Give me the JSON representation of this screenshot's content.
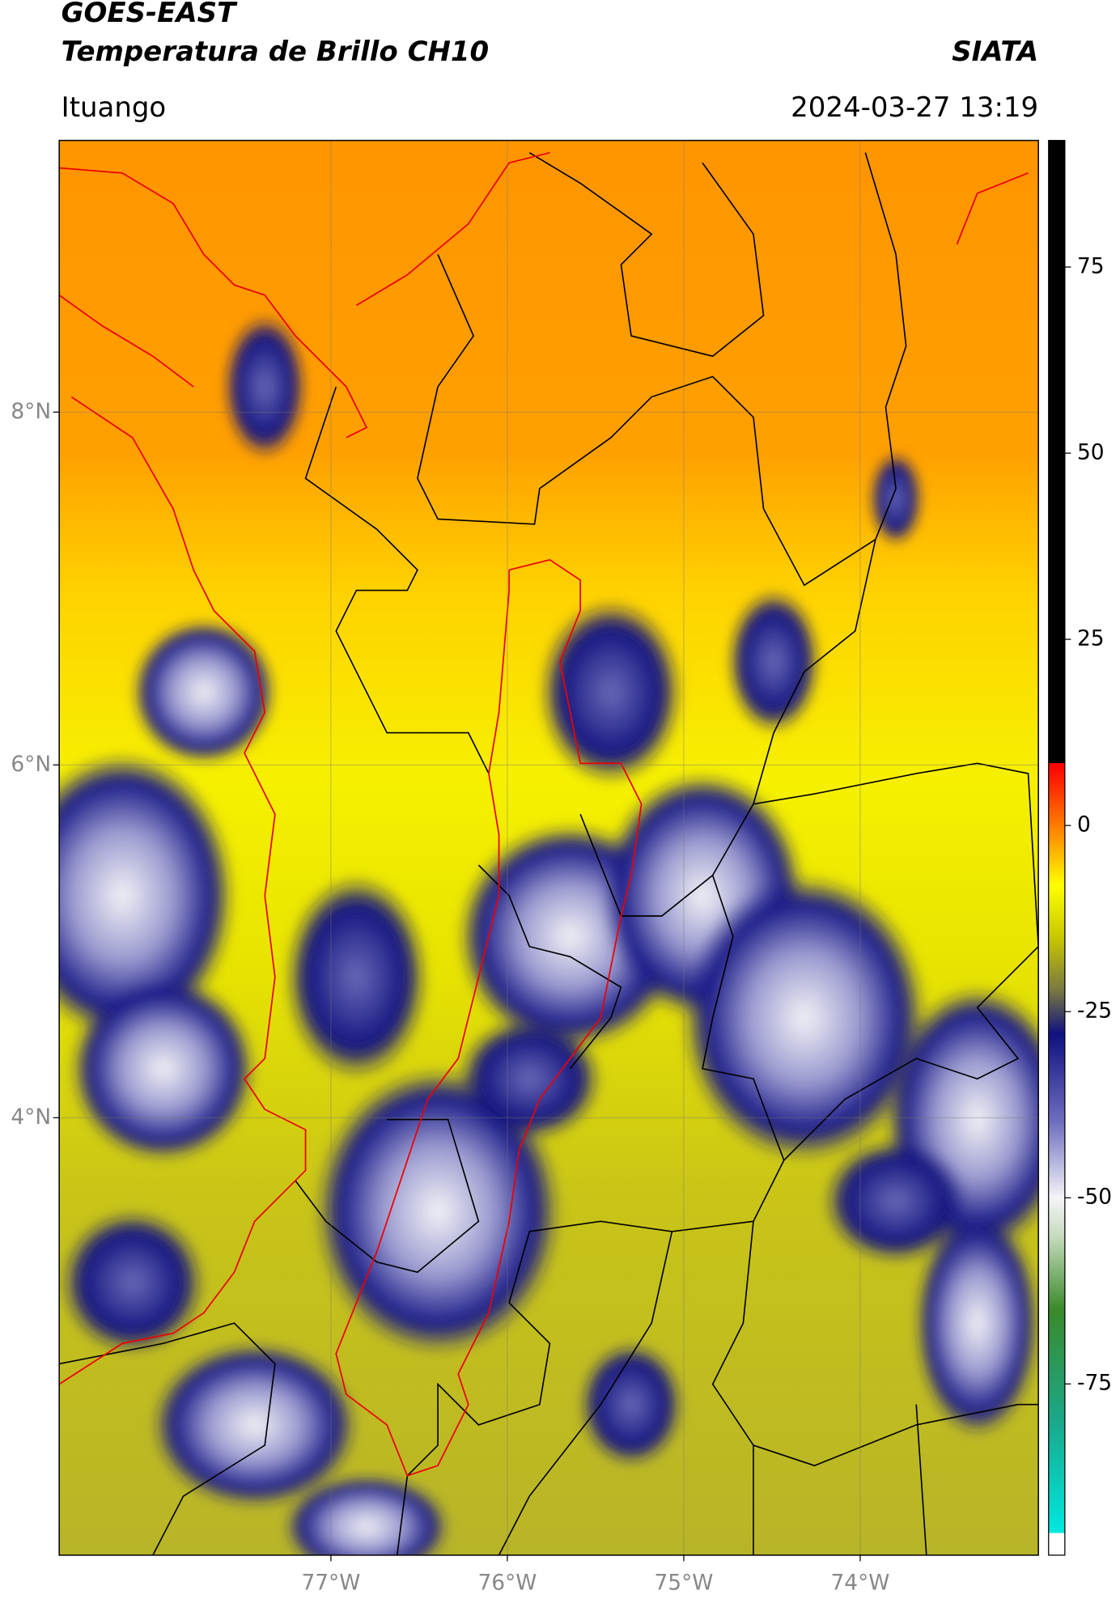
{
  "chart_data": {
    "type": "map",
    "title": "GOES-EAST",
    "subtitle": "Temperatura de Brillo CH10",
    "source": "SIATA",
    "location": "Ituango",
    "datetime": "2024-03-27 13:19",
    "xlim": [
      -78.54,
      -72.99
    ],
    "ylim": [
      1.52,
      9.54
    ],
    "xticks": [
      {
        "value": -77,
        "label": "77°W"
      },
      {
        "value": -76,
        "label": "76°W"
      },
      {
        "value": -75,
        "label": "75°W"
      },
      {
        "value": -74,
        "label": "74°W"
      }
    ],
    "yticks": [
      {
        "value": 8,
        "label": "8°N"
      },
      {
        "value": 6,
        "label": "6°N"
      },
      {
        "value": 4,
        "label": "4°N"
      }
    ],
    "grid": true,
    "colorbar": {
      "clim": [
        -98,
        92
      ],
      "ticks": [
        75,
        50,
        25,
        0,
        -25,
        -50,
        -75
      ],
      "colormap": [
        {
          "value": -98,
          "color": "#ffffff"
        },
        {
          "value": -95,
          "color": "#ffffff"
        },
        {
          "value": -95,
          "color": "#00e8e0"
        },
        {
          "value": -80,
          "color": "#1aa88a"
        },
        {
          "value": -65,
          "color": "#3a8a2a"
        },
        {
          "value": -55,
          "color": "#c8dcc0"
        },
        {
          "value": -50,
          "color": "#f4f4f8"
        },
        {
          "value": -40,
          "color": "#7070c0"
        },
        {
          "value": -28,
          "color": "#101080"
        },
        {
          "value": -22,
          "color": "#7a7a40"
        },
        {
          "value": -15,
          "color": "#c8c800"
        },
        {
          "value": -8,
          "color": "#ffff00"
        },
        {
          "value": -2,
          "color": "#ff9a00"
        },
        {
          "value": 6,
          "color": "#ff2000"
        },
        {
          "value": 8.4,
          "color": "#ff0000"
        },
        {
          "value": 8.4,
          "color": "#000000"
        },
        {
          "value": 92,
          "color": "#000000"
        }
      ]
    }
  }
}
